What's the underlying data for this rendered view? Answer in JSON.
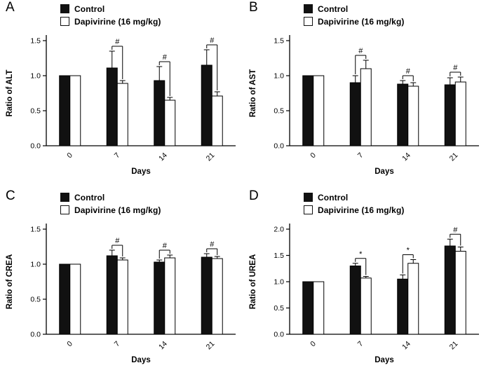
{
  "figure": {
    "xlabel": "Days",
    "colors": {
      "control_fill": "#111111",
      "treatment_fill": "#ffffff",
      "axis": "#000000"
    },
    "legend": {
      "control": "Control",
      "treatment": "Dapivirine (16 mg/kg)"
    }
  },
  "chart_data": [
    {
      "type": "bar",
      "panel": "A",
      "title": "",
      "ylabel": "Ratio of ALT",
      "xlabel": "Days",
      "categories": [
        "0",
        "7",
        "14",
        "21"
      ],
      "ylim": [
        0,
        1.5
      ],
      "yticks": [
        "0.0",
        "0.5",
        "1.0",
        "1.5"
      ],
      "legend_position": "top",
      "grid": false,
      "series": [
        {
          "name": "Control",
          "values": [
            1.0,
            1.11,
            0.93,
            1.15
          ],
          "errors": [
            0,
            0.24,
            0.2,
            0.22
          ]
        },
        {
          "name": "Dapivirine (16 mg/kg)",
          "values": [
            1.0,
            0.89,
            0.65,
            0.71
          ],
          "errors": [
            0,
            0.04,
            0.04,
            0.06
          ]
        }
      ],
      "significance": [
        {
          "group": 1,
          "symbol": "#"
        },
        {
          "group": 2,
          "symbol": "#"
        },
        {
          "group": 3,
          "symbol": "#"
        }
      ]
    },
    {
      "type": "bar",
      "panel": "B",
      "title": "",
      "ylabel": "Ratio of AST",
      "xlabel": "Days",
      "categories": [
        "0",
        "7",
        "14",
        "21"
      ],
      "ylim": [
        0,
        1.5
      ],
      "yticks": [
        "0.0",
        "0.5",
        "1.0",
        "1.5"
      ],
      "legend_position": "top",
      "grid": false,
      "series": [
        {
          "name": "Control",
          "values": [
            1.0,
            0.9,
            0.88,
            0.87
          ],
          "errors": [
            0,
            0.1,
            0.05,
            0.1
          ]
        },
        {
          "name": "Dapivirine (16 mg/kg)",
          "values": [
            1.0,
            1.1,
            0.85,
            0.91
          ],
          "errors": [
            0,
            0.12,
            0.05,
            0.07
          ]
        }
      ],
      "significance": [
        {
          "group": 1,
          "symbol": "#"
        },
        {
          "group": 2,
          "symbol": "#"
        },
        {
          "group": 3,
          "symbol": "#"
        }
      ]
    },
    {
      "type": "bar",
      "panel": "C",
      "title": "",
      "ylabel": "Ratio of CREA",
      "xlabel": "Days",
      "categories": [
        "0",
        "7",
        "14",
        "21"
      ],
      "ylim": [
        0,
        1.5
      ],
      "yticks": [
        "0.0",
        "0.5",
        "1.0",
        "1.5"
      ],
      "legend_position": "top",
      "grid": false,
      "series": [
        {
          "name": "Control",
          "values": [
            1.0,
            1.12,
            1.03,
            1.1
          ],
          "errors": [
            0,
            0.08,
            0.03,
            0.05
          ]
        },
        {
          "name": "Dapivirine (16 mg/kg)",
          "values": [
            1.0,
            1.06,
            1.09,
            1.08
          ],
          "errors": [
            0,
            0.03,
            0.04,
            0.03
          ]
        }
      ],
      "significance": [
        {
          "group": 1,
          "symbol": "#"
        },
        {
          "group": 2,
          "symbol": "#"
        },
        {
          "group": 3,
          "symbol": "#"
        }
      ]
    },
    {
      "type": "bar",
      "panel": "D",
      "title": "",
      "ylabel": "Ratio of UREA",
      "xlabel": "Days",
      "categories": [
        "0",
        "7",
        "14",
        "21"
      ],
      "ylim": [
        0,
        2.0
      ],
      "yticks": [
        "0.0",
        "0.5",
        "1.0",
        "1.5",
        "2.0"
      ],
      "legend_position": "top",
      "grid": false,
      "series": [
        {
          "name": "Control",
          "values": [
            1.0,
            1.3,
            1.05,
            1.68
          ],
          "errors": [
            0,
            0.05,
            0.08,
            0.13
          ]
        },
        {
          "name": "Dapivirine (16 mg/kg)",
          "values": [
            1.0,
            1.07,
            1.35,
            1.58
          ],
          "errors": [
            0,
            0.03,
            0.07,
            0.08
          ]
        }
      ],
      "significance": [
        {
          "group": 1,
          "symbol": "*"
        },
        {
          "group": 2,
          "symbol": "*"
        },
        {
          "group": 3,
          "symbol": "#"
        }
      ]
    }
  ]
}
